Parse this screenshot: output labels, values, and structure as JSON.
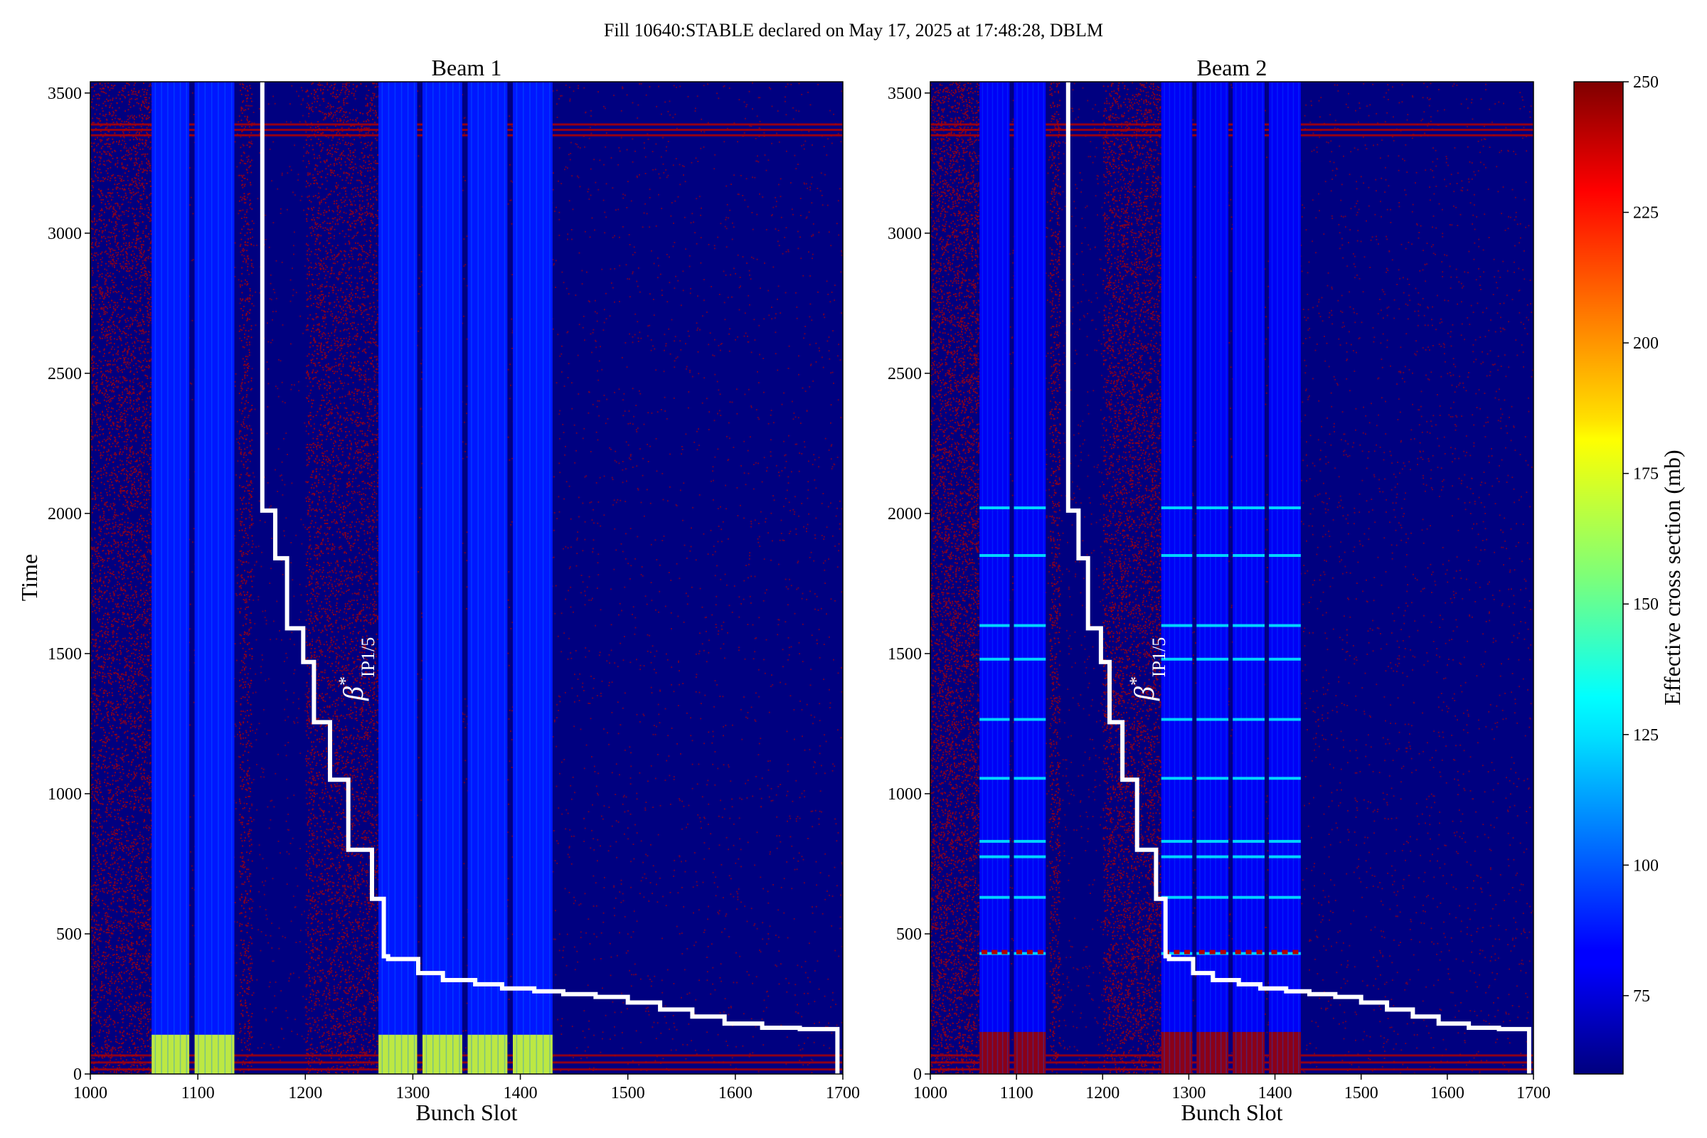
{
  "figure": {
    "suptitle": "Fill 10640:STABLE declared on May 17, 2025 at 17:48:28, DBLM"
  },
  "colorbar": {
    "label": "Effective cross section (mb)",
    "vmin": 60,
    "vmax": 250,
    "ticks": [
      75,
      100,
      125,
      150,
      175,
      200,
      225,
      250
    ],
    "colormap": "jet"
  },
  "colors": {
    "background_low": "#00007f",
    "noise_high": "#b00000",
    "beta_line": "#ffffff"
  },
  "annotation": {
    "beta_label_main": "β",
    "beta_label_sup": "*",
    "beta_label_sub": "IP1/5"
  },
  "chart_data": [
    {
      "type": "heatmap",
      "title": "Beam 1",
      "xlabel": "Bunch Slot",
      "ylabel": "Time",
      "xlim": [
        1000,
        1700
      ],
      "ylim": [
        0,
        3540
      ],
      "xticks": [
        1000,
        1100,
        1200,
        1300,
        1400,
        1500,
        1600,
        1700
      ],
      "yticks": [
        0,
        500,
        1000,
        1500,
        2000,
        2500,
        3000,
        3500
      ],
      "filled_trains": [
        [
          1057,
          1092
        ],
        [
          1097,
          1134
        ],
        [
          1268,
          1304
        ],
        [
          1309,
          1346
        ],
        [
          1351,
          1388
        ],
        [
          1393,
          1430
        ]
      ],
      "train_fill_value": 88,
      "train_low_time_value": 170,
      "noise_band_time": [
        3345,
        3400
      ],
      "beta_step_line": {
        "x": [
          1160,
          1160,
          1172,
          1172,
          1183,
          1183,
          1198,
          1198,
          1208,
          1208,
          1223,
          1223,
          1240,
          1240,
          1262,
          1262,
          1273,
          1273,
          1277,
          1277,
          1305,
          1305,
          1328,
          1328,
          1358,
          1358,
          1383,
          1383,
          1413,
          1413,
          1440,
          1440,
          1470,
          1470,
          1500,
          1500,
          1530,
          1530,
          1560,
          1560,
          1590,
          1590,
          1625,
          1625,
          1660,
          1660,
          1695,
          1695
        ],
        "y": [
          3540,
          2010,
          2010,
          1840,
          1840,
          1590,
          1590,
          1470,
          1470,
          1255,
          1255,
          1050,
          1050,
          800,
          800,
          625,
          625,
          420,
          420,
          410,
          410,
          360,
          360,
          335,
          335,
          320,
          320,
          305,
          305,
          295,
          295,
          285,
          285,
          275,
          275,
          255,
          255,
          230,
          230,
          205,
          205,
          180,
          180,
          165,
          165,
          160,
          160,
          0
        ]
      }
    },
    {
      "type": "heatmap",
      "title": "Beam 2",
      "xlabel": "Bunch Slot",
      "ylabel": "",
      "xlim": [
        1000,
        1700
      ],
      "ylim": [
        0,
        3540
      ],
      "xticks": [
        1000,
        1100,
        1200,
        1300,
        1400,
        1500,
        1600,
        1700
      ],
      "yticks": [
        0,
        500,
        1000,
        1500,
        2000,
        2500,
        3000,
        3500
      ],
      "filled_trains": [
        [
          1057,
          1092
        ],
        [
          1097,
          1134
        ],
        [
          1268,
          1304
        ],
        [
          1309,
          1346
        ],
        [
          1351,
          1388
        ],
        [
          1393,
          1430
        ]
      ],
      "train_fill_value": 82,
      "train_low_time_value": 245,
      "bright_time_lines": [
        2020,
        1850,
        1600,
        1480,
        1265,
        1055,
        830,
        775,
        630,
        430
      ],
      "noise_band_time": [
        3345,
        3400
      ],
      "beta_step_line": {
        "x": [
          1160,
          1160,
          1172,
          1172,
          1183,
          1183,
          1198,
          1198,
          1208,
          1208,
          1223,
          1223,
          1240,
          1240,
          1262,
          1262,
          1273,
          1273,
          1277,
          1277,
          1305,
          1305,
          1328,
          1328,
          1358,
          1358,
          1383,
          1383,
          1413,
          1413,
          1440,
          1440,
          1470,
          1470,
          1500,
          1500,
          1530,
          1530,
          1560,
          1560,
          1590,
          1590,
          1625,
          1625,
          1660,
          1660,
          1695,
          1695
        ],
        "y": [
          3540,
          2010,
          2010,
          1840,
          1840,
          1590,
          1590,
          1470,
          1470,
          1255,
          1255,
          1050,
          1050,
          800,
          800,
          625,
          625,
          420,
          420,
          410,
          410,
          360,
          360,
          335,
          335,
          320,
          320,
          305,
          305,
          295,
          295,
          285,
          285,
          275,
          275,
          255,
          255,
          230,
          230,
          205,
          205,
          180,
          180,
          165,
          165,
          160,
          160,
          0
        ]
      }
    }
  ]
}
